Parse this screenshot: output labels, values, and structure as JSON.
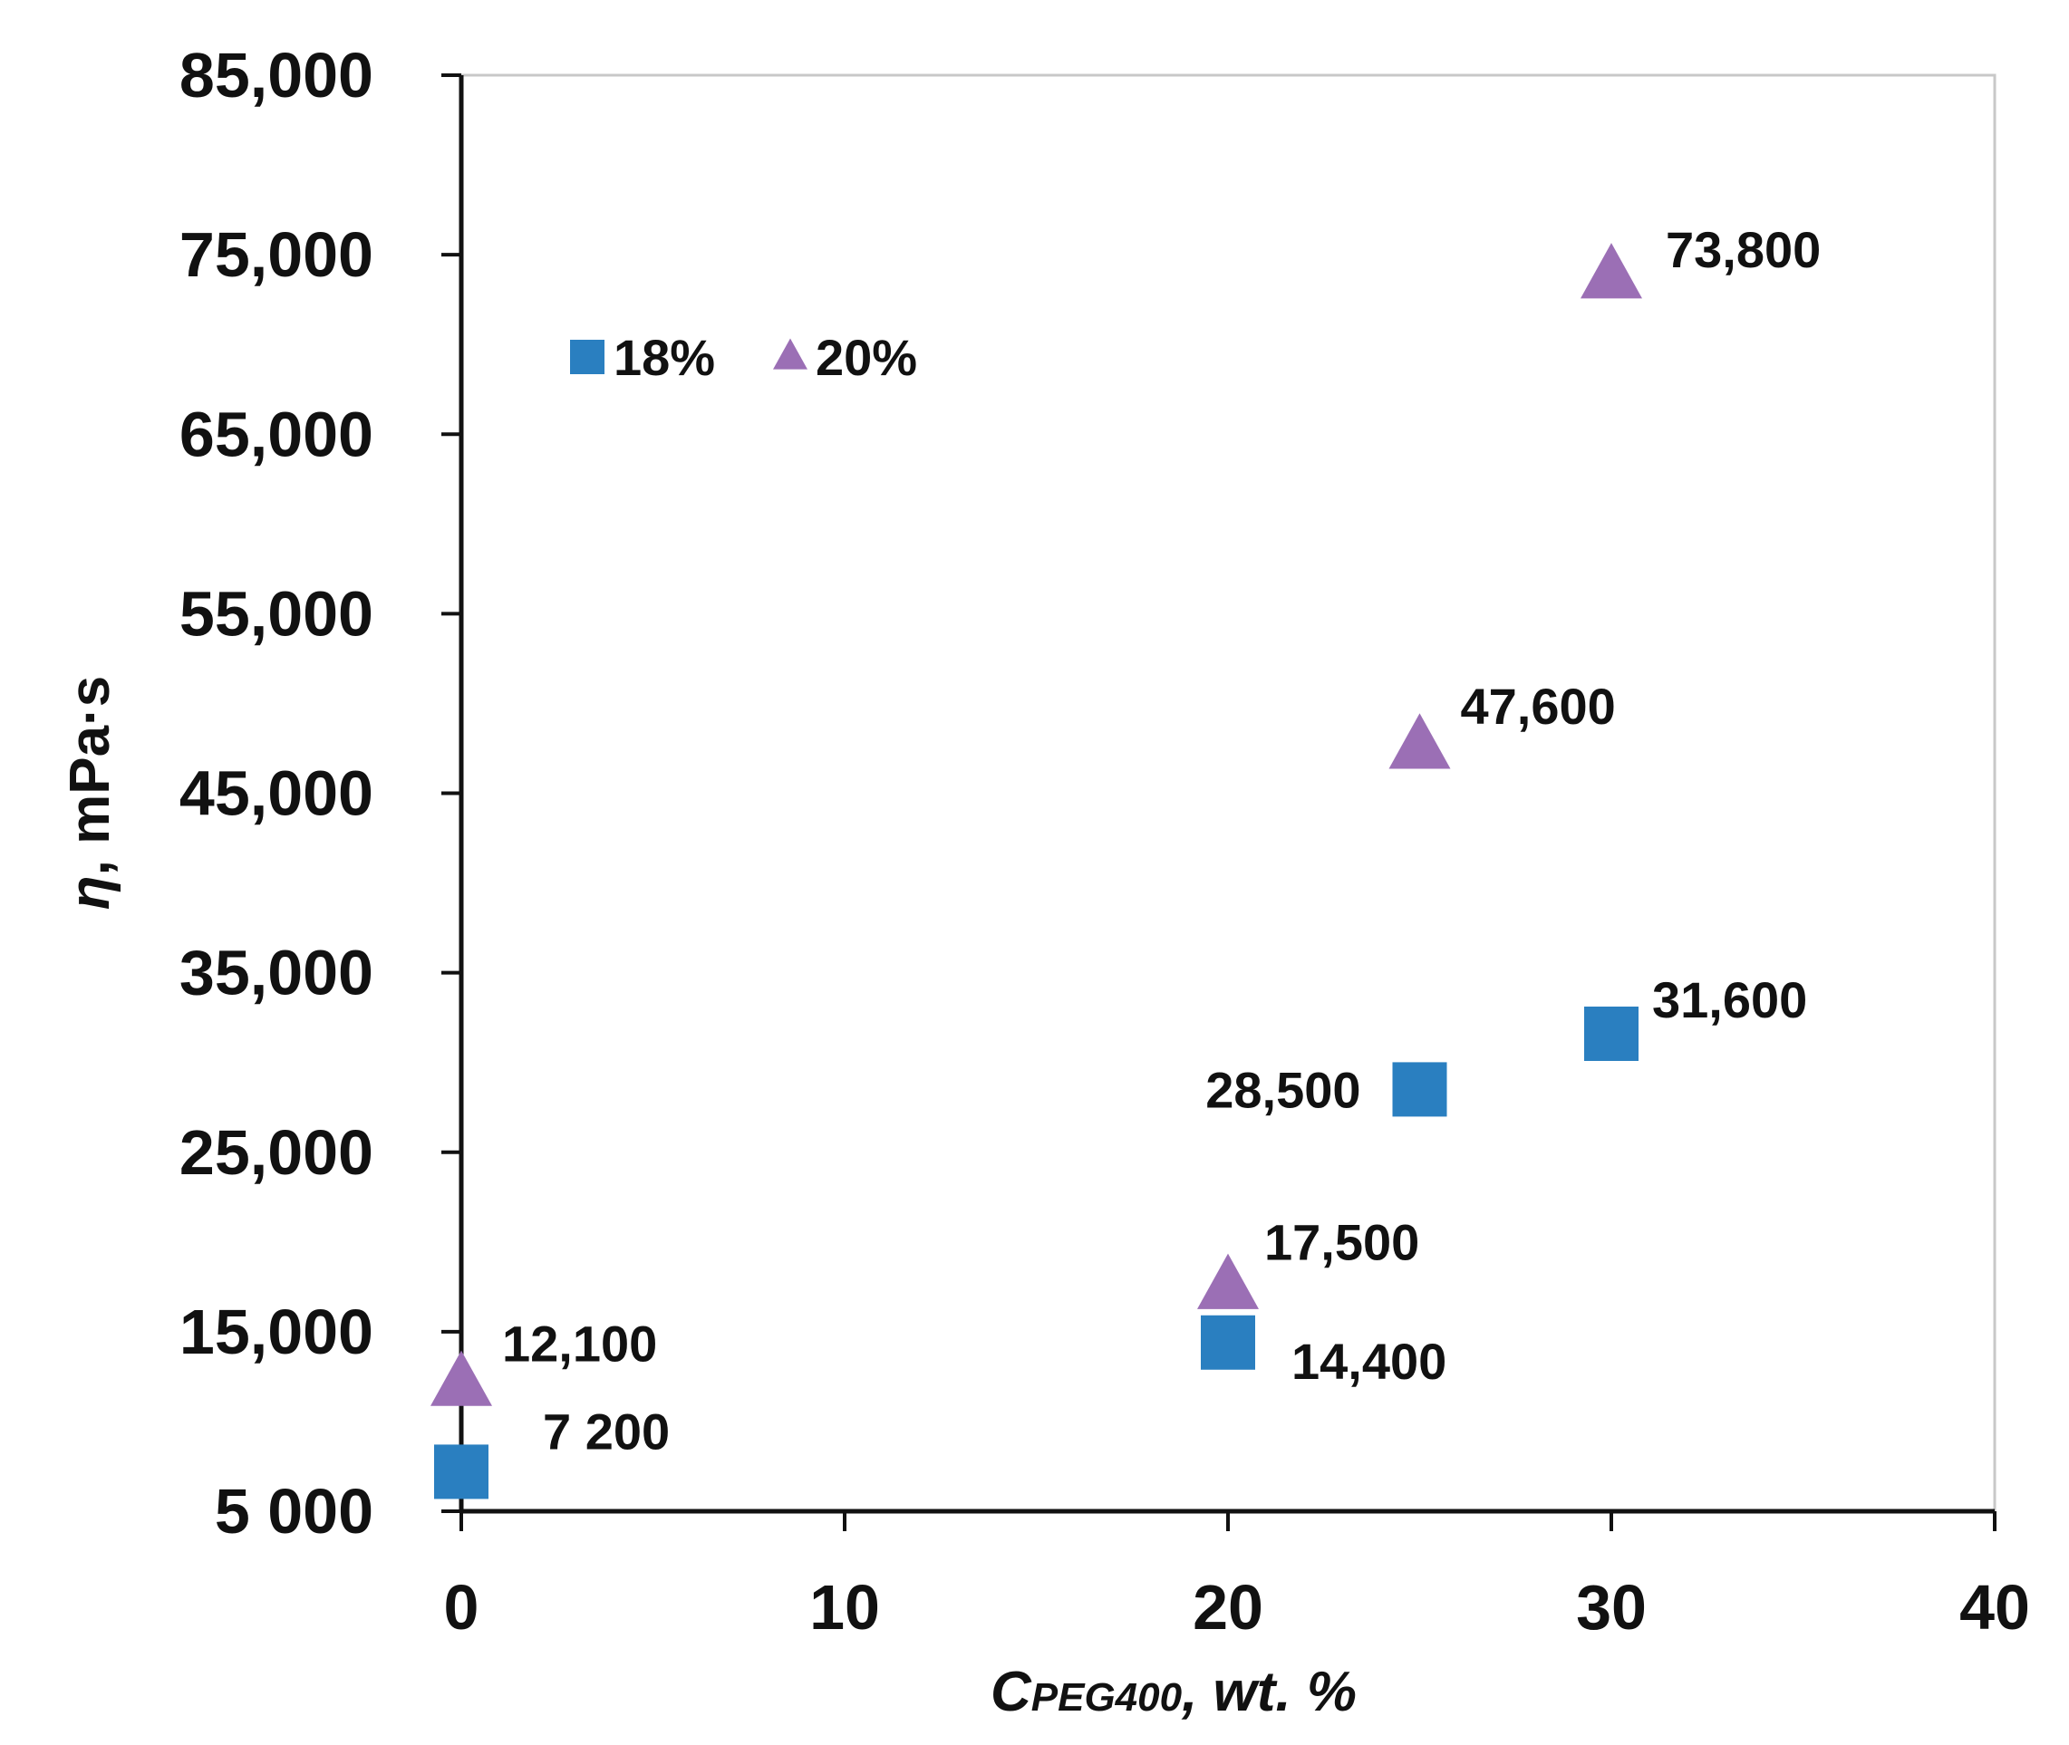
{
  "chart_data": {
    "type": "scatter",
    "xlabel_main": "C",
    "xlabel_sub": "PEG400",
    "xlabel_rest": ", wt. %",
    "ylabel_symbol": "η",
    "ylabel_rest": ", mPa·s",
    "xlim": [
      0,
      40
    ],
    "ylim": [
      5000,
      85000
    ],
    "x_ticks": [
      0,
      10,
      20,
      30,
      40
    ],
    "x_tick_labels": [
      "0",
      "10",
      "20",
      "30",
      "40"
    ],
    "y_ticks": [
      5000,
      15000,
      25000,
      35000,
      45000,
      55000,
      65000,
      75000,
      85000
    ],
    "y_tick_labels": [
      "5 000",
      "15,000",
      "25,000",
      "35,000",
      "45,000",
      "55,000",
      "65,000",
      "75,000",
      "85,000"
    ],
    "legend": {
      "placement": "top-left"
    },
    "series": [
      {
        "name": "18%",
        "marker": "square",
        "color": "#2a7fc0",
        "points": [
          {
            "x": 0,
            "y": 7200,
            "label": "7 200"
          },
          {
            "x": 20,
            "y": 14400,
            "label": "14,400"
          },
          {
            "x": 25,
            "y": 28500,
            "label": "28,500"
          },
          {
            "x": 30,
            "y": 31600,
            "label": "31,600"
          }
        ]
      },
      {
        "name": "20%",
        "marker": "triangle",
        "color": "#9b6fb5",
        "points": [
          {
            "x": 0,
            "y": 12100,
            "label": "12,100"
          },
          {
            "x": 20,
            "y": 17500,
            "label": "17,500"
          },
          {
            "x": 25,
            "y": 47600,
            "label": "47,600"
          },
          {
            "x": 30,
            "y": 73800,
            "label": "73,800"
          }
        ]
      }
    ]
  }
}
